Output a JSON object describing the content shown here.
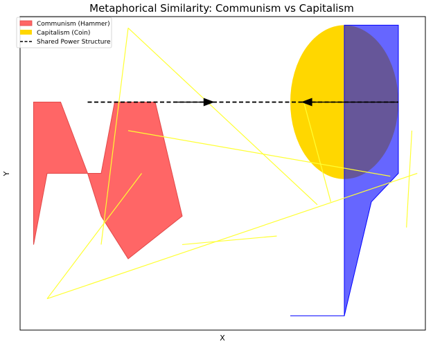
{
  "chart_data": {
    "type": "area",
    "title": "Metaphorical Similarity: Communism vs Capitalism",
    "xlabel": "X",
    "ylabel": "Y",
    "xlim": [
      0,
      15
    ],
    "ylim": [
      0,
      11
    ],
    "grid": false,
    "legend_placement": "top-left",
    "legend": [
      {
        "label": "Communism (Hammer)",
        "kind": "patch",
        "color": "#ff6666"
      },
      {
        "label": "Capitalism (Coin)",
        "kind": "patch",
        "color": "#ffd700"
      },
      {
        "label": "Shared Power Structure",
        "kind": "dashed-line",
        "color": "#000000"
      }
    ],
    "series": [
      {
        "name": "Communism (Hammer)",
        "shape": "polygon",
        "fill": "#ff6666",
        "edge": "#e04848",
        "points": [
          [
            0.5,
            8
          ],
          [
            1.5,
            8
          ],
          [
            2.5,
            5.5
          ],
          [
            3,
            5.5
          ],
          [
            3.5,
            8
          ],
          [
            5,
            8
          ],
          [
            6,
            4
          ],
          [
            4,
            2.5
          ],
          [
            3,
            4
          ],
          [
            2.5,
            5.5
          ],
          [
            1,
            5.5
          ],
          [
            0.5,
            3
          ]
        ]
      },
      {
        "name": "Capitalism (Coin)",
        "shape": "ellipse",
        "fill": "#ffd700",
        "center": [
          12,
          8
        ],
        "radius_x": 2,
        "radius_y": 2.7
      },
      {
        "name": "",
        "shape": "polygon",
        "fill": "#0000ff",
        "opacity": 0.6,
        "edge": "#0000ff",
        "points": [
          [
            12,
            10.7
          ],
          [
            14,
            10.7
          ],
          [
            14,
            5.5
          ],
          [
            13,
            4.5
          ],
          [
            12,
            0.5
          ],
          [
            10,
            0.5
          ],
          [
            12,
            0.5
          ]
        ]
      }
    ],
    "shared_power_structure": {
      "from": [
        2.5,
        8
      ],
      "to": [
        14,
        8
      ],
      "style": "dashed",
      "color": "#000000"
    },
    "arrows": [
      {
        "from": [
          5.7,
          8
        ],
        "to": [
          7.2,
          8
        ]
      },
      {
        "from": [
          14,
          8
        ],
        "to": [
          10.4,
          8
        ]
      }
    ],
    "yellow_lines": [
      [
        [
          4,
          10.6
        ],
        [
          11,
          4.4
        ]
      ],
      [
        [
          4,
          10.6
        ],
        [
          3,
          3
        ]
      ],
      [
        [
          4,
          7
        ],
        [
          13.7,
          5.4
        ]
      ],
      [
        [
          4.5,
          5.5
        ],
        [
          1,
          1.1
        ]
      ],
      [
        [
          1,
          1.1
        ],
        [
          14.7,
          5.5
        ]
      ],
      [
        [
          10.5,
          8
        ],
        [
          11.5,
          4.5
        ]
      ],
      [
        [
          14.5,
          7
        ],
        [
          14.3,
          3.6
        ]
      ],
      [
        [
          6,
          3
        ],
        [
          9.5,
          3.3
        ]
      ]
    ]
  }
}
